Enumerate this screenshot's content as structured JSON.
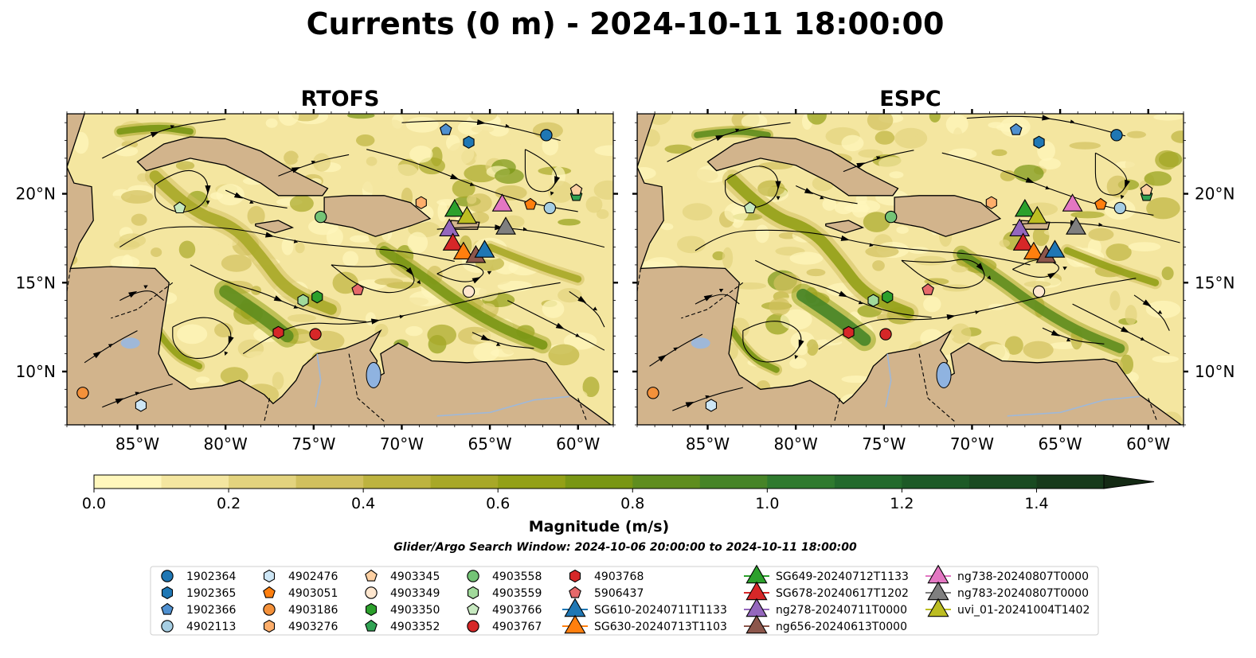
{
  "figure": {
    "title": "Currents (0 m) - 2024-10-11 18:00:00",
    "search_window": "Glider/Argo Search Window: 2024-10-06 20:00:00 to 2024-10-11 18:00:00"
  },
  "panels": [
    {
      "title": "RTOFS"
    },
    {
      "title": "ESPC"
    }
  ],
  "colors": {
    "land": "#d2b48c",
    "lake": "#8fb3e0",
    "river": "#9fb8d8",
    "cmap": [
      "#fff7bc",
      "#f4e6a0",
      "#e3d37e",
      "#d1c05e",
      "#bdb33f",
      "#a8a828",
      "#93a017",
      "#799614",
      "#5f8d1e",
      "#468427",
      "#2f7a2e",
      "#236a2c",
      "#1d5a27",
      "#194a21",
      "#173a1b",
      "#142a14"
    ]
  },
  "chart_data": {
    "type": "heatmap",
    "quantity": "Currents (0 m)",
    "xaxis": {
      "ticks": [
        -85,
        -80,
        -75,
        -70,
        -65,
        -60
      ],
      "tick_labels": [
        "85°W",
        "80°W",
        "75°W",
        "70°W",
        "65°W",
        "60°W"
      ],
      "range": [
        -89,
        -58
      ]
    },
    "yaxis": {
      "ticks": [
        10,
        15,
        20
      ],
      "tick_labels": [
        "10°N",
        "15°N",
        "20°N"
      ],
      "range": [
        7,
        24.5
      ]
    },
    "colorbar": {
      "label": "Magnitude (m/s)",
      "range": [
        0,
        1.5
      ],
      "extend": "max",
      "ticks": [
        0.0,
        0.2,
        0.4,
        0.6,
        0.8,
        1.0,
        1.2,
        1.4
      ],
      "tick_labels": [
        "0.0",
        "0.2",
        "0.4",
        "0.6",
        "0.8",
        "1.0",
        "1.2",
        "1.4"
      ]
    },
    "legend": {
      "placement": "bottom-center",
      "columns": [
        [
          {
            "label": "1902364",
            "marker": "circle",
            "color": "#1f77b4"
          },
          {
            "label": "1902365",
            "marker": "hexagon",
            "color": "#1f77b4"
          },
          {
            "label": "1902366",
            "marker": "pentagon",
            "color": "#4f90d0"
          },
          {
            "label": "4902113",
            "marker": "circle",
            "color": "#a6cee3"
          }
        ],
        [
          {
            "label": "4902476",
            "marker": "hexagon",
            "color": "#cde6f5"
          },
          {
            "label": "4903051",
            "marker": "pentagon",
            "color": "#ff7f0e"
          },
          {
            "label": "4903186",
            "marker": "circle",
            "color": "#f4913a"
          },
          {
            "label": "4903276",
            "marker": "hexagon",
            "color": "#fdae6b"
          }
        ],
        [
          {
            "label": "4903345",
            "marker": "pentagon",
            "color": "#fdd0a2"
          },
          {
            "label": "4903349",
            "marker": "circle",
            "color": "#fee6ce"
          },
          {
            "label": "4903350",
            "marker": "hexagon",
            "color": "#2ca02c"
          },
          {
            "label": "4903352",
            "marker": "pentagon",
            "color": "#31a354"
          }
        ],
        [
          {
            "label": "4903558",
            "marker": "circle",
            "color": "#74c476"
          },
          {
            "label": "4903559",
            "marker": "hexagon",
            "color": "#a1d99b"
          },
          {
            "label": "4903766",
            "marker": "pentagon",
            "color": "#c7e9c0"
          },
          {
            "label": "4903767",
            "marker": "circle",
            "color": "#d62728"
          }
        ],
        [
          {
            "label": "4903768",
            "marker": "hexagon",
            "color": "#d62728"
          },
          {
            "label": "5906437",
            "marker": "pentagon",
            "color": "#e6696a"
          },
          {
            "label": "SG610-20240711T1133",
            "marker": "triangle",
            "color": "#1f77b4"
          },
          {
            "label": "SG630-20240713T1103",
            "marker": "triangle",
            "color": "#ff7f0e"
          }
        ],
        [
          {
            "label": "SG649-20240712T1133",
            "marker": "triangle",
            "color": "#2ca02c"
          },
          {
            "label": "SG678-20240617T1202",
            "marker": "triangle",
            "color": "#d62728"
          },
          {
            "label": "ng278-20240711T0000",
            "marker": "triangle",
            "color": "#9467bd"
          },
          {
            "label": "ng656-20240613T0000",
            "marker": "triangle",
            "color": "#8c564b"
          }
        ],
        [
          {
            "label": "ng738-20240807T0000",
            "marker": "triangle",
            "color": "#e377c2"
          },
          {
            "label": "ng783-20240807T0000",
            "marker": "triangle",
            "color": "#7f7f7f"
          },
          {
            "label": "uvi_01-20241004T1402",
            "marker": "triangle",
            "color": "#bcbd22"
          }
        ]
      ]
    },
    "platforms": [
      {
        "id": "1902366",
        "marker": "pentagon",
        "color": "#4f90d0",
        "lon": -67.5,
        "lat": 23.6
      },
      {
        "id": "1902365",
        "marker": "hexagon",
        "color": "#1f77b4",
        "lon": -66.2,
        "lat": 22.9
      },
      {
        "id": "1902364",
        "marker": "circle",
        "color": "#1f77b4",
        "lon": -61.8,
        "lat": 23.3
      },
      {
        "id": "4903352",
        "marker": "pentagon",
        "color": "#31a354",
        "lon": -60.1,
        "lat": 19.9
      },
      {
        "id": "4903345",
        "marker": "pentagon",
        "color": "#fdd0a2",
        "lon": -60.1,
        "lat": 20.2
      },
      {
        "id": "4903051",
        "marker": "pentagon",
        "color": "#ff7f0e",
        "lon": -62.7,
        "lat": 19.4
      },
      {
        "id": "4902113",
        "marker": "circle",
        "color": "#a6cee3",
        "lon": -61.6,
        "lat": 19.2
      },
      {
        "id": "4903276",
        "marker": "hexagon",
        "color": "#fdae6b",
        "lon": -68.9,
        "lat": 19.5
      },
      {
        "id": "4903558",
        "marker": "circle",
        "color": "#74c476",
        "lon": -74.6,
        "lat": 18.7
      },
      {
        "id": "4903766",
        "marker": "pentagon",
        "color": "#c7e9c0",
        "lon": -82.6,
        "lat": 19.2
      },
      {
        "id": "5906437",
        "marker": "pentagon",
        "color": "#e6696a",
        "lon": -72.5,
        "lat": 14.6
      },
      {
        "id": "4903350",
        "marker": "hexagon",
        "color": "#2ca02c",
        "lon": -74.8,
        "lat": 14.2
      },
      {
        "id": "4903559",
        "marker": "hexagon",
        "color": "#a1d99b",
        "lon": -75.6,
        "lat": 14.0
      },
      {
        "id": "4903349",
        "marker": "circle",
        "color": "#fee6ce",
        "lon": -66.2,
        "lat": 14.5
      },
      {
        "id": "4903768",
        "marker": "hexagon",
        "color": "#d62728",
        "lon": -77.0,
        "lat": 12.2
      },
      {
        "id": "4903767",
        "marker": "circle",
        "color": "#d62728",
        "lon": -74.9,
        "lat": 12.1
      },
      {
        "id": "4903186",
        "marker": "circle",
        "color": "#f4913a",
        "lon": -88.1,
        "lat": 8.8
      },
      {
        "id": "4902476",
        "marker": "hexagon",
        "color": "#cde6f5",
        "lon": -84.8,
        "lat": 8.1
      },
      {
        "id": "SG649-20240712T1133",
        "marker": "triangle",
        "color": "#2ca02c",
        "lon": -67.0,
        "lat": 19.1
      },
      {
        "id": "uvi_01-20241004T1402",
        "marker": "triangle",
        "color": "#bcbd22",
        "lon": -66.3,
        "lat": 18.7
      },
      {
        "id": "ng738-20240807T0000",
        "marker": "triangle",
        "color": "#e377c2",
        "lon": -64.3,
        "lat": 19.4
      },
      {
        "id": "ng278-20240711T0000",
        "marker": "triangle",
        "color": "#9467bd",
        "lon": -67.3,
        "lat": 18.0
      },
      {
        "id": "ng783-20240807T0000",
        "marker": "triangle",
        "color": "#7f7f7f",
        "lon": -64.1,
        "lat": 18.1
      },
      {
        "id": "SG678-20240617T1202",
        "marker": "triangle",
        "color": "#d62728",
        "lon": -67.1,
        "lat": 17.2
      },
      {
        "id": "SG630-20240713T1103",
        "marker": "triangle",
        "color": "#ff7f0e",
        "lon": -66.5,
        "lat": 16.7
      },
      {
        "id": "ng656-20240613T0000",
        "marker": "triangle",
        "color": "#8c564b",
        "lon": -65.8,
        "lat": 16.5
      },
      {
        "id": "SG610-20240711T1133",
        "marker": "triangle",
        "color": "#1f77b4",
        "lon": -65.3,
        "lat": 16.8
      }
    ]
  }
}
